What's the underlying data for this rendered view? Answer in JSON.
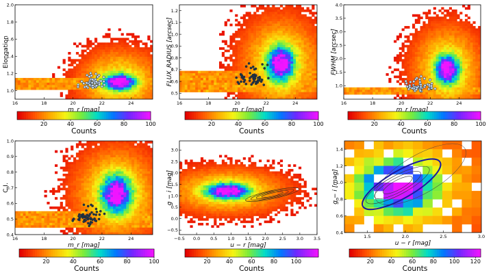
{
  "chart_data": [
    {
      "type": "heatmap",
      "title": "",
      "xlabel": "m_r [mag]",
      "ylabel": "Elongation",
      "xlim": [
        16,
        25.5
      ],
      "ylim": [
        0.9,
        2.0
      ],
      "xticks": [
        16,
        18,
        20,
        22,
        24
      ],
      "yticks": [
        1.0,
        1.2,
        1.4,
        1.6,
        1.8,
        2.0
      ],
      "ytick_labels": [
        "1.0",
        "1.2",
        "1.4",
        "1.6",
        "1.8",
        "2.0"
      ],
      "density_peak": {
        "x": 23.2,
        "y": 1.1
      },
      "overlay": "circles",
      "colorbar": {
        "label": "Counts",
        "min": 0,
        "max": 100,
        "ticks": [
          20,
          40,
          60,
          80,
          100
        ]
      }
    },
    {
      "type": "heatmap",
      "title": "",
      "xlabel": "m_r [mag]",
      "ylabel": "FLUX_RADIUS [arcsec]",
      "xlim": [
        16,
        25.5
      ],
      "ylim": [
        0.45,
        1.25
      ],
      "xticks": [
        16,
        18,
        20,
        22,
        24
      ],
      "yticks": [
        0.5,
        0.6,
        0.7,
        0.8,
        0.9,
        1.0,
        1.1,
        1.2
      ],
      "ytick_labels": [
        "0.5",
        "0.6",
        "0.7",
        "0.8",
        "0.9",
        "1.0",
        "1.1",
        "1.2"
      ],
      "density_peak": {
        "x": 23.0,
        "y": 0.75
      },
      "overlay": "dots",
      "colorbar": {
        "label": "Counts",
        "min": 0,
        "max": 100,
        "ticks": [
          20,
          40,
          60,
          80,
          100
        ]
      }
    },
    {
      "type": "heatmap",
      "title": "",
      "xlabel": "m_r [mag]",
      "ylabel": "FWHM [arcsec]",
      "xlim": [
        16,
        25.5
      ],
      "ylim": [
        0.5,
        4.0
      ],
      "xticks": [
        16,
        18,
        20,
        22,
        24
      ],
      "yticks": [
        1.0,
        1.5,
        2.0,
        2.5,
        3.0,
        3.5,
        4.0
      ],
      "ytick_labels": [
        "1.0",
        "1.5",
        "2.0",
        "2.5",
        "3.0",
        "3.5",
        "4.0"
      ],
      "density_peak": {
        "x": 23.2,
        "y": 1.6
      },
      "overlay": "circles",
      "colorbar": {
        "label": "Counts",
        "min": 0,
        "max": 100,
        "ticks": [
          20,
          40,
          60,
          80,
          100
        ]
      }
    },
    {
      "type": "heatmap",
      "title": "",
      "xlabel": "m_r [mag]",
      "ylabel": "C.I.",
      "xlim": [
        16,
        25.5
      ],
      "ylim": [
        0.4,
        1.0
      ],
      "xticks": [
        16,
        18,
        20,
        22,
        24
      ],
      "yticks": [
        0.4,
        0.5,
        0.6,
        0.7,
        0.8,
        0.9,
        1.0
      ],
      "ytick_labels": [
        "0.4",
        "0.5",
        "0.6",
        "0.7",
        "0.8",
        "0.9",
        "1.0"
      ],
      "density_peak": {
        "x": 23.0,
        "y": 0.66
      },
      "overlay": "dots",
      "colorbar": {
        "label": "Counts",
        "min": 0,
        "max": 100,
        "ticks": [
          20,
          40,
          60,
          80,
          100
        ]
      }
    },
    {
      "type": "heatmap",
      "title": "",
      "xlabel": "u − r [mag]",
      "ylabel": "g − i [mag]",
      "xlim": [
        -0.5,
        3.5
      ],
      "ylim": [
        -0.7,
        3.4
      ],
      "xticks": [
        -0.5,
        0.0,
        0.5,
        1.0,
        1.5,
        2.0,
        2.5,
        3.0,
        3.5
      ],
      "yticks": [
        -0.5,
        0.0,
        0.5,
        1.0,
        1.5,
        2.0,
        2.5,
        3.0
      ],
      "ytick_labels": [
        "−0.5",
        "0.0",
        "0.5",
        "1.0",
        "1.5",
        "2.0",
        "2.5",
        "3.0"
      ],
      "density_peak": {
        "x": 0.9,
        "y": 1.2
      },
      "overlay": "contour",
      "colorbar": {
        "label": "Counts",
        "min": 0,
        "max": 120,
        "ticks": [
          20,
          40,
          60,
          80,
          100
        ]
      }
    },
    {
      "type": "heatmap",
      "title": "",
      "xlabel": "u − r [mag]",
      "ylabel": "g − i [mag]",
      "xlim": [
        1.2,
        3.0
      ],
      "ylim": [
        0.4,
        1.5
      ],
      "xticks": [
        1.5,
        2.0,
        2.5,
        3.0
      ],
      "yticks": [
        0.4,
        0.6,
        0.8,
        1.0,
        1.2,
        1.4
      ],
      "ytick_labels": [
        "0.4",
        "0.6",
        "0.8",
        "1.0",
        "1.2",
        "1.4"
      ],
      "density_peak": {
        "x": 1.9,
        "y": 0.95
      },
      "overlay": "contour",
      "colorbar": {
        "label": "Counts",
        "min": 0,
        "max": 125,
        "ticks": [
          20,
          40,
          60,
          80,
          100,
          120
        ]
      }
    }
  ]
}
